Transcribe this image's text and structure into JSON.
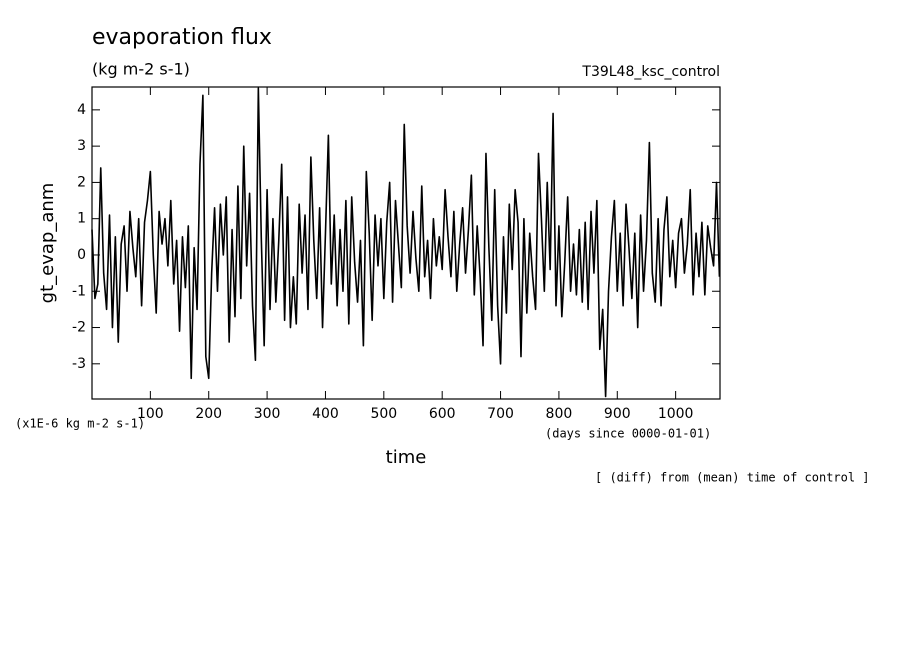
{
  "chart_data": {
    "type": "line",
    "title": "evaporation flux",
    "subtitle": "(kg m-2 s-1)",
    "annotation_right": "T39L48_ksc_control",
    "y_label": "gt_evap_anm",
    "x_label": "time",
    "y_unit_note": "(x1E-6 kg m-2 s-1)",
    "x_unit_note": "(days since 0000-01-01)",
    "footnote": "[ (diff) from (mean) time of control ]",
    "color": "#000000",
    "xlim": [
      0,
      1076
    ],
    "ylim": [
      -3.97,
      4.63
    ],
    "xticks": [
      100,
      200,
      300,
      400,
      500,
      600,
      700,
      800,
      900,
      1000
    ],
    "yticks": [
      -3,
      -2,
      -1,
      0,
      1,
      2,
      3,
      4
    ],
    "x": [
      0,
      5,
      10,
      15,
      20,
      25,
      30,
      35,
      40,
      45,
      50,
      55,
      60,
      65,
      70,
      75,
      80,
      85,
      90,
      95,
      100,
      105,
      110,
      115,
      120,
      125,
      130,
      135,
      140,
      145,
      150,
      155,
      160,
      165,
      170,
      175,
      180,
      185,
      190,
      195,
      200,
      205,
      210,
      215,
      220,
      225,
      230,
      235,
      240,
      245,
      250,
      255,
      260,
      265,
      270,
      275,
      280,
      285,
      290,
      295,
      300,
      305,
      310,
      315,
      320,
      325,
      330,
      335,
      340,
      345,
      350,
      355,
      360,
      365,
      370,
      375,
      380,
      385,
      390,
      395,
      400,
      405,
      410,
      415,
      420,
      425,
      430,
      435,
      440,
      445,
      450,
      455,
      460,
      465,
      470,
      475,
      480,
      485,
      490,
      495,
      500,
      505,
      510,
      515,
      520,
      525,
      530,
      535,
      540,
      545,
      550,
      555,
      560,
      565,
      570,
      575,
      580,
      585,
      590,
      595,
      600,
      605,
      610,
      615,
      620,
      625,
      630,
      635,
      640,
      645,
      650,
      655,
      660,
      665,
      670,
      675,
      680,
      685,
      690,
      695,
      700,
      705,
      710,
      715,
      720,
      725,
      730,
      735,
      740,
      745,
      750,
      755,
      760,
      765,
      770,
      775,
      780,
      785,
      790,
      795,
      800,
      805,
      810,
      815,
      820,
      825,
      830,
      835,
      840,
      845,
      850,
      855,
      860,
      865,
      870,
      875,
      880,
      885,
      890,
      895,
      900,
      905,
      910,
      915,
      920,
      925,
      930,
      935,
      940,
      945,
      950,
      955,
      960,
      965,
      970,
      975,
      980,
      985,
      990,
      995,
      1000,
      1005,
      1010,
      1015,
      1020,
      1025,
      1030,
      1035,
      1040,
      1045,
      1050,
      1055,
      1060,
      1065,
      1070,
      1075
    ],
    "values": [
      0.7,
      -1.2,
      -0.8,
      2.4,
      -0.5,
      -1.5,
      1.1,
      -2.0,
      0.5,
      -2.4,
      0.3,
      0.8,
      -1.0,
      1.2,
      0.2,
      -0.6,
      1.0,
      -1.4,
      0.9,
      1.5,
      2.3,
      0.0,
      -1.6,
      1.2,
      0.3,
      1.0,
      -0.3,
      1.5,
      -0.8,
      0.4,
      -2.1,
      0.5,
      -0.9,
      0.8,
      -3.4,
      0.2,
      -1.5,
      2.5,
      4.4,
      -2.8,
      -3.4,
      -0.5,
      1.3,
      -1.0,
      1.4,
      0.0,
      1.6,
      -2.4,
      0.7,
      -1.7,
      1.9,
      -1.2,
      3.0,
      -0.3,
      1.7,
      -1.4,
      -2.9,
      4.6,
      0.5,
      -2.5,
      1.8,
      -1.5,
      1.0,
      -1.3,
      0.4,
      2.5,
      -1.8,
      1.6,
      -2.0,
      -0.6,
      -1.9,
      1.4,
      -0.5,
      1.1,
      -1.5,
      2.7,
      0.4,
      -1.2,
      1.3,
      -2.0,
      0.6,
      3.3,
      -0.8,
      1.1,
      -1.4,
      0.7,
      -1.0,
      1.5,
      -1.9,
      1.6,
      -0.2,
      -1.3,
      0.4,
      -2.5,
      2.3,
      0.6,
      -1.8,
      1.1,
      -0.3,
      1.0,
      -1.2,
      0.9,
      2.0,
      -1.3,
      1.5,
      0.3,
      -0.9,
      3.6,
      0.8,
      -0.5,
      1.2,
      -0.1,
      -1.0,
      1.9,
      -0.6,
      0.4,
      -1.2,
      1.0,
      -0.3,
      0.5,
      -0.4,
      1.8,
      0.5,
      -0.6,
      1.2,
      -1.0,
      0.3,
      1.3,
      -0.5,
      0.7,
      2.2,
      -1.1,
      0.8,
      -0.6,
      -2.5,
      2.8,
      0.2,
      -1.8,
      1.8,
      -1.4,
      -3.0,
      0.5,
      -1.6,
      1.4,
      -0.4,
      1.8,
      0.9,
      -2.8,
      1.0,
      -1.6,
      0.6,
      -0.6,
      -1.5,
      2.8,
      1.0,
      -1.0,
      2.0,
      -0.4,
      3.9,
      -1.4,
      0.8,
      -1.7,
      -0.2,
      1.6,
      -1.0,
      0.3,
      -1.1,
      0.7,
      -1.3,
      0.9,
      -1.5,
      1.2,
      -0.5,
      1.5,
      -2.6,
      -1.5,
      -3.9,
      -1.0,
      0.5,
      1.5,
      -1.0,
      0.6,
      -1.4,
      1.4,
      0.2,
      -1.2,
      0.6,
      -2.0,
      1.1,
      -1.0,
      0.4,
      3.1,
      -0.5,
      -1.3,
      1.0,
      -1.4,
      0.7,
      1.6,
      -0.6,
      0.4,
      -0.9,
      0.6,
      1.0,
      -0.5,
      0.3,
      1.8,
      -1.1,
      0.6,
      -0.6,
      0.9,
      -1.1,
      0.8,
      0.2,
      -0.3,
      2.0,
      -0.6
    ]
  }
}
